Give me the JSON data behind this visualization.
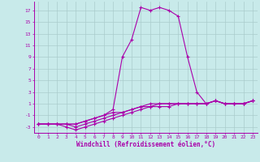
{
  "xlabel": "Windchill (Refroidissement éolien,°C)",
  "bg_color": "#c8eaea",
  "grid_color": "#aacccc",
  "line_color": "#aa00aa",
  "hours": [
    0,
    1,
    2,
    3,
    4,
    5,
    6,
    7,
    8,
    9,
    10,
    11,
    12,
    13,
    14,
    15,
    16,
    17,
    18,
    19,
    20,
    21,
    22,
    23
  ],
  "temp": [
    -2.5,
    -2.5,
    -2.5,
    -2.5,
    -2.5,
    -2.0,
    -1.5,
    -1.0,
    0.0,
    9.0,
    12.0,
    17.5,
    17.0,
    17.5,
    17.0,
    16.0,
    9.0,
    3.0,
    1.0,
    1.5,
    1.0,
    1.0,
    1.0,
    1.5
  ],
  "wind1": [
    -2.5,
    -2.5,
    -2.5,
    -2.5,
    -2.5,
    -2.0,
    -1.5,
    -1.0,
    -0.5,
    -0.5,
    0.0,
    0.5,
    1.0,
    1.0,
    1.0,
    1.0,
    1.0,
    1.0,
    1.0,
    1.5,
    1.0,
    1.0,
    1.0,
    1.5
  ],
  "wind2": [
    -2.5,
    -2.5,
    -2.5,
    -2.5,
    -3.0,
    -2.5,
    -2.0,
    -1.5,
    -1.0,
    -0.5,
    0.0,
    0.5,
    0.5,
    1.0,
    1.0,
    1.0,
    1.0,
    1.0,
    1.0,
    1.5,
    1.0,
    1.0,
    1.0,
    1.5
  ],
  "wind3": [
    -2.5,
    -2.5,
    -2.5,
    -3.0,
    -3.5,
    -3.0,
    -2.5,
    -2.0,
    -1.5,
    -1.0,
    -0.5,
    0.0,
    0.5,
    0.5,
    0.5,
    1.0,
    1.0,
    1.0,
    1.0,
    1.5,
    1.0,
    1.0,
    1.0,
    1.5
  ],
  "ylim": [
    -4,
    18.5
  ],
  "yticks": [
    -3,
    -1,
    1,
    3,
    5,
    7,
    9,
    11,
    13,
    15,
    17
  ]
}
